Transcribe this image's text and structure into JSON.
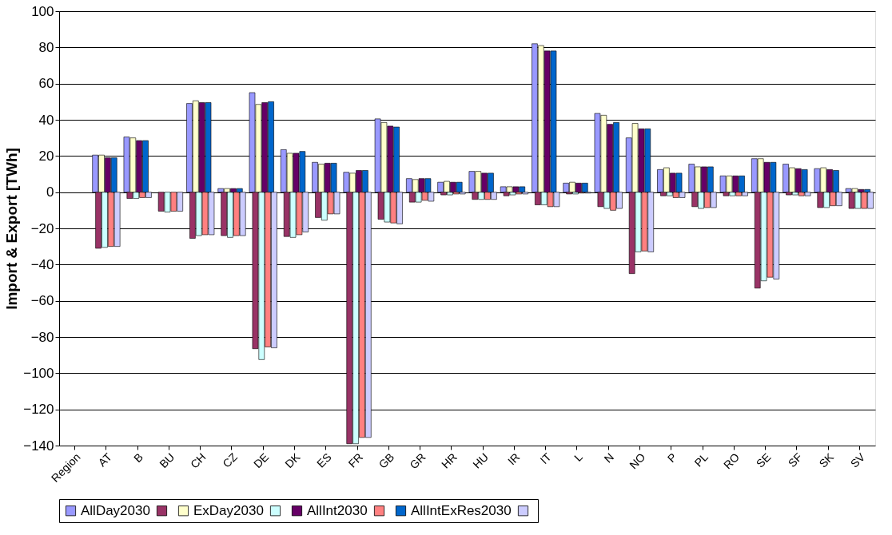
{
  "chart_data": {
    "type": "bar",
    "ylabel": "Import & Export [TWh]",
    "categories": [
      "Region",
      "AT",
      "B",
      "BU",
      "CH",
      "CZ",
      "DE",
      "DK",
      "ES",
      "FR",
      "GB",
      "GR",
      "HR",
      "HU",
      "IR",
      "IT",
      "L",
      "N",
      "NO",
      "P",
      "PL",
      "RO",
      "SE",
      "SF",
      "SK",
      "SV"
    ],
    "series": [
      {
        "name": "AllDay2030",
        "color": "#9999ff",
        "values": [
          null,
          20.5,
          30.5,
          null,
          49,
          2,
          55,
          23.5,
          16.5,
          11,
          40.5,
          7.5,
          5.5,
          11.5,
          3,
          82,
          5,
          43.5,
          30,
          12.5,
          15.5,
          9,
          18.5,
          15.5,
          13,
          2
        ]
      },
      {
        "color": "#993366",
        "values": [
          null,
          -31,
          -3.5,
          -10.5,
          -25.5,
          -24,
          -86.5,
          -24.5,
          -14,
          -139,
          -15,
          -5.5,
          -1.5,
          -4,
          -2,
          -7,
          -1,
          -8,
          -45,
          -2,
          -8,
          -2,
          -53,
          -1.5,
          -8.5,
          -9
        ]
      },
      {
        "name": "ExDay2030",
        "color": "#ffffcc",
        "values": [
          null,
          20.5,
          30,
          null,
          50.5,
          2,
          48.5,
          21.5,
          15.5,
          10.5,
          38.5,
          7,
          6,
          11.5,
          3,
          81,
          5.5,
          42.5,
          38,
          13.5,
          14,
          9,
          18.5,
          13.5,
          13.5,
          2
        ]
      },
      {
        "color": "#ccffff",
        "values": [
          null,
          -30.5,
          -3.5,
          -11,
          -24,
          -25,
          -92.5,
          -25,
          -15.5,
          -139,
          -16.5,
          -5.5,
          -1.5,
          -4,
          -1.5,
          -7,
          -1,
          -9,
          -33,
          -2,
          -9,
          -2,
          -49,
          -1.5,
          -8.5,
          -9
        ]
      },
      {
        "name": "AllInt2030",
        "color": "#660066",
        "values": [
          null,
          19,
          28.5,
          null,
          49.5,
          2,
          49.5,
          21.5,
          16,
          12,
          36.5,
          7.5,
          5.5,
          10.5,
          3,
          78,
          5,
          37.5,
          35,
          10.5,
          14,
          9,
          16.5,
          13,
          12.5,
          1.5
        ]
      },
      {
        "color": "#ff8080",
        "values": [
          null,
          -30,
          -3,
          -10.5,
          -23.5,
          -24,
          -85.5,
          -23.5,
          -12,
          -135.5,
          -17,
          -4.5,
          -1,
          -4,
          -1,
          -8,
          -0.5,
          -10,
          -32.5,
          -3,
          -8.5,
          -2,
          -47,
          -2,
          -7.5,
          -9
        ]
      },
      {
        "name": "AllIntExRes2030",
        "color": "#0066cc",
        "values": [
          null,
          19,
          28.5,
          null,
          49.5,
          2,
          50,
          22.5,
          16,
          12,
          36,
          7.5,
          5.5,
          10.5,
          3,
          78,
          5,
          38.5,
          35,
          10.5,
          14,
          9,
          16.5,
          12.5,
          12,
          1.5
        ]
      },
      {
        "color": "#ccccff",
        "values": [
          null,
          -30,
          -3,
          -10.5,
          -23.5,
          -24,
          -86,
          -22,
          -12,
          -135.5,
          -17.5,
          -5,
          -1,
          -4,
          -1,
          -8,
          -0.5,
          -9,
          -33,
          -3,
          -8.5,
          -2,
          -48,
          -2,
          -7.5,
          -9
        ]
      }
    ],
    "ylim": [
      -140,
      100
    ],
    "yticks": [
      -140,
      -120,
      -100,
      -80,
      -60,
      -40,
      -20,
      0,
      20,
      40,
      60,
      80,
      100
    ],
    "grid": "y",
    "legend": "bottom"
  }
}
